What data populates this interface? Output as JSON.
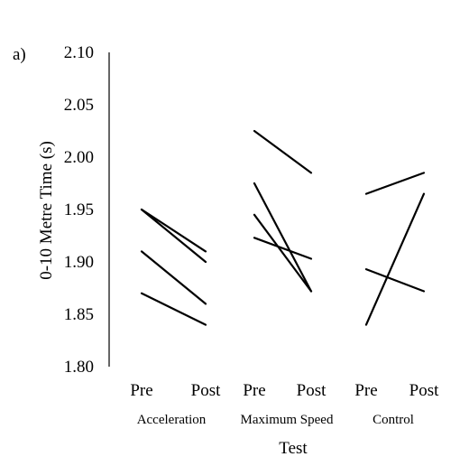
{
  "panel_label": "a)",
  "colors": {
    "line": "#000000",
    "background": "#ffffff"
  },
  "chart_data": {
    "type": "line",
    "title": "",
    "ylabel": "0-10 Metre Time (s)",
    "xlabel": "Test",
    "ylim": [
      1.8,
      2.1
    ],
    "yticks": [
      "1.80",
      "1.85",
      "1.90",
      "1.95",
      "2.00",
      "2.05",
      "2.10"
    ],
    "grid": false,
    "legend": "none",
    "groups": [
      {
        "name": "Acceleration",
        "x": [
          "Pre",
          "Post"
        ],
        "series": [
          {
            "values": [
              1.95,
              1.91
            ]
          },
          {
            "values": [
              1.95,
              1.9
            ]
          },
          {
            "values": [
              1.91,
              1.86
            ]
          },
          {
            "values": [
              1.87,
              1.84
            ]
          }
        ]
      },
      {
        "name": "Maximum Speed",
        "x": [
          "Pre",
          "Post"
        ],
        "series": [
          {
            "values": [
              2.025,
              1.985
            ]
          },
          {
            "values": [
              1.975,
              1.872
            ]
          },
          {
            "values": [
              1.945,
              1.872
            ]
          },
          {
            "values": [
              1.923,
              1.903
            ]
          }
        ]
      },
      {
        "name": "Control",
        "x": [
          "Pre",
          "Post"
        ],
        "series": [
          {
            "values": [
              1.965,
              1.985
            ]
          },
          {
            "values": [
              1.893,
              1.872
            ]
          },
          {
            "values": [
              1.84,
              1.965
            ]
          }
        ]
      }
    ]
  }
}
